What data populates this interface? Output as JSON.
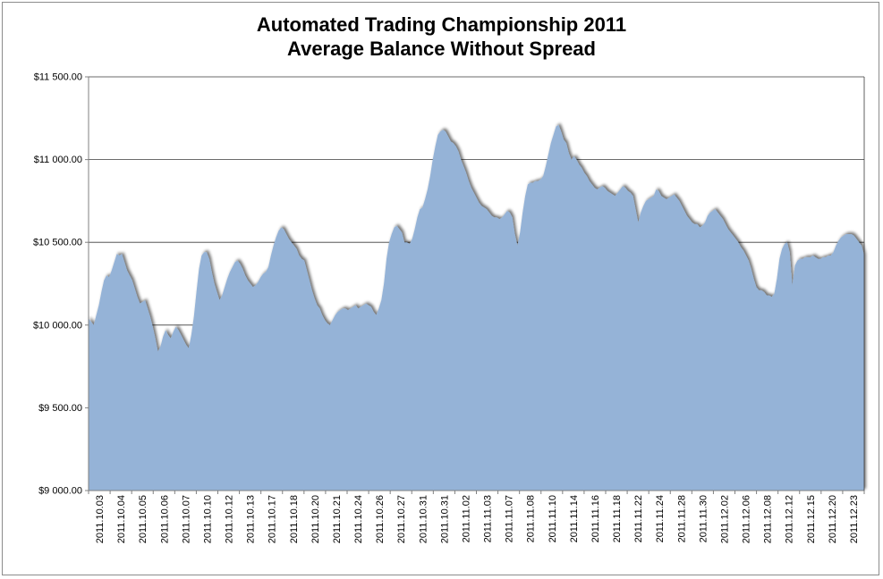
{
  "chart_data": {
    "type": "area",
    "title_line1": "Automated Trading Championship 2011",
    "title_line2": "Average Balance Without Spread",
    "xlabel": "",
    "ylabel": "",
    "ylim": [
      9000,
      11500
    ],
    "yticks": [
      {
        "value": 9000,
        "label": "$9 000.00"
      },
      {
        "value": 9500,
        "label": "$9 500.00"
      },
      {
        "value": 10000,
        "label": "$10 000.00"
      },
      {
        "value": 10500,
        "label": "$10 500.00"
      },
      {
        "value": 11000,
        "label": "$11 000.00"
      },
      {
        "value": 11500,
        "label": "$11 500.00"
      }
    ],
    "x_tick_labels": [
      "2011.10.03",
      "2011.10.04",
      "2011.10.05",
      "2011.10.06",
      "2011.10.07",
      "2011.10.10",
      "2011.10.12",
      "2011.10.13",
      "2011.10.17",
      "2011.10.18",
      "2011.10.20",
      "2011.10.21",
      "2011.10.24",
      "2011.10.26",
      "2011.10.27",
      "2011.10.31",
      "2011.10.31",
      "2011.11.02",
      "2011.11.03",
      "2011.11.07",
      "2011.11.08",
      "2011.11.10",
      "2011.11.14",
      "2011.11.16",
      "2011.11.18",
      "2011.11.22",
      "2011.11.24",
      "2011.11.28",
      "2011.11.30",
      "2011.12.02",
      "2011.12.06",
      "2011.12.08",
      "2011.12.12",
      "2011.12.15",
      "2011.12.20",
      "2011.12.23"
    ],
    "series": [
      {
        "fill_color": "#95b3d7",
        "values": [
          10040,
          10020,
          10000,
          10060,
          10120,
          10200,
          10270,
          10300,
          10290,
          10330,
          10380,
          10430,
          10420,
          10430,
          10380,
          10330,
          10300,
          10270,
          10220,
          10170,
          10130,
          10140,
          10150,
          10100,
          10050,
          9990,
          9920,
          9840,
          9870,
          9930,
          9970,
          9940,
          9920,
          9960,
          9990,
          9970,
          9940,
          9910,
          9880,
          9860,
          9940,
          10050,
          10200,
          10340,
          10420,
          10440,
          10440,
          10400,
          10320,
          10250,
          10200,
          10150,
          10180,
          10230,
          10280,
          10320,
          10350,
          10380,
          10390,
          10370,
          10340,
          10300,
          10270,
          10250,
          10230,
          10240,
          10260,
          10290,
          10310,
          10320,
          10350,
          10420,
          10480,
          10530,
          10570,
          10590,
          10580,
          10550,
          10520,
          10500,
          10480,
          10460,
          10420,
          10400,
          10390,
          10330,
          10270,
          10210,
          10160,
          10120,
          10100,
          10060,
          10030,
          10010,
          10000,
          10030,
          10060,
          10080,
          10090,
          10100,
          10100,
          10090,
          10100,
          10110,
          10120,
          10100,
          10110,
          10120,
          10130,
          10120,
          10110,
          10080,
          10060,
          10100,
          10150,
          10250,
          10400,
          10500,
          10550,
          10590,
          10600,
          10580,
          10560,
          10500,
          10500,
          10490,
          10520,
          10580,
          10650,
          10700,
          10710,
          10760,
          10820,
          10900,
          11000,
          11080,
          11150,
          11170,
          11180,
          11170,
          11140,
          11110,
          11100,
          11080,
          11050,
          11000,
          10960,
          10920,
          10870,
          10830,
          10800,
          10770,
          10740,
          10720,
          10710,
          10700,
          10680,
          10660,
          10650,
          10650,
          10640,
          10650,
          10670,
          10690,
          10680,
          10650,
          10550,
          10480,
          10560,
          10680,
          10780,
          10850,
          10860,
          10860,
          10870,
          10870,
          10880,
          10900,
          10960,
          11030,
          11100,
          11150,
          11200,
          11210,
          11170,
          11120,
          11100,
          11040,
          11000,
          11020,
          11000,
          10970,
          10950,
          10920,
          10900,
          10870,
          10850,
          10830,
          10820,
          10830,
          10840,
          10830,
          10810,
          10800,
          10790,
          10780,
          10800,
          10820,
          10840,
          10830,
          10810,
          10800,
          10780,
          10700,
          10620,
          10680,
          10720,
          10750,
          10760,
          10770,
          10780,
          10820,
          10810,
          10780,
          10770,
          10760,
          10770,
          10780,
          10790,
          10770,
          10750,
          10720,
          10690,
          10660,
          10640,
          10620,
          10610,
          10610,
          10590,
          10600,
          10620,
          10660,
          10680,
          10690,
          10700,
          10680,
          10660,
          10640,
          10610,
          10580,
          10560,
          10540,
          10520,
          10500,
          10470,
          10450,
          10420,
          10390,
          10340,
          10280,
          10230,
          10210,
          10210,
          10200,
          10180,
          10180,
          10170,
          10190,
          10280,
          10400,
          10460,
          10490,
          10500,
          10440,
          10240,
          10360,
          10390,
          10400,
          10400,
          10410,
          10410,
          10410,
          10420,
          10410,
          10400,
          10400,
          10410,
          10410,
          10420,
          10420,
          10440,
          10480,
          10510,
          10530,
          10540,
          10550,
          10550,
          10550,
          10540,
          10520,
          10500,
          10480,
          10420
        ]
      }
    ]
  }
}
